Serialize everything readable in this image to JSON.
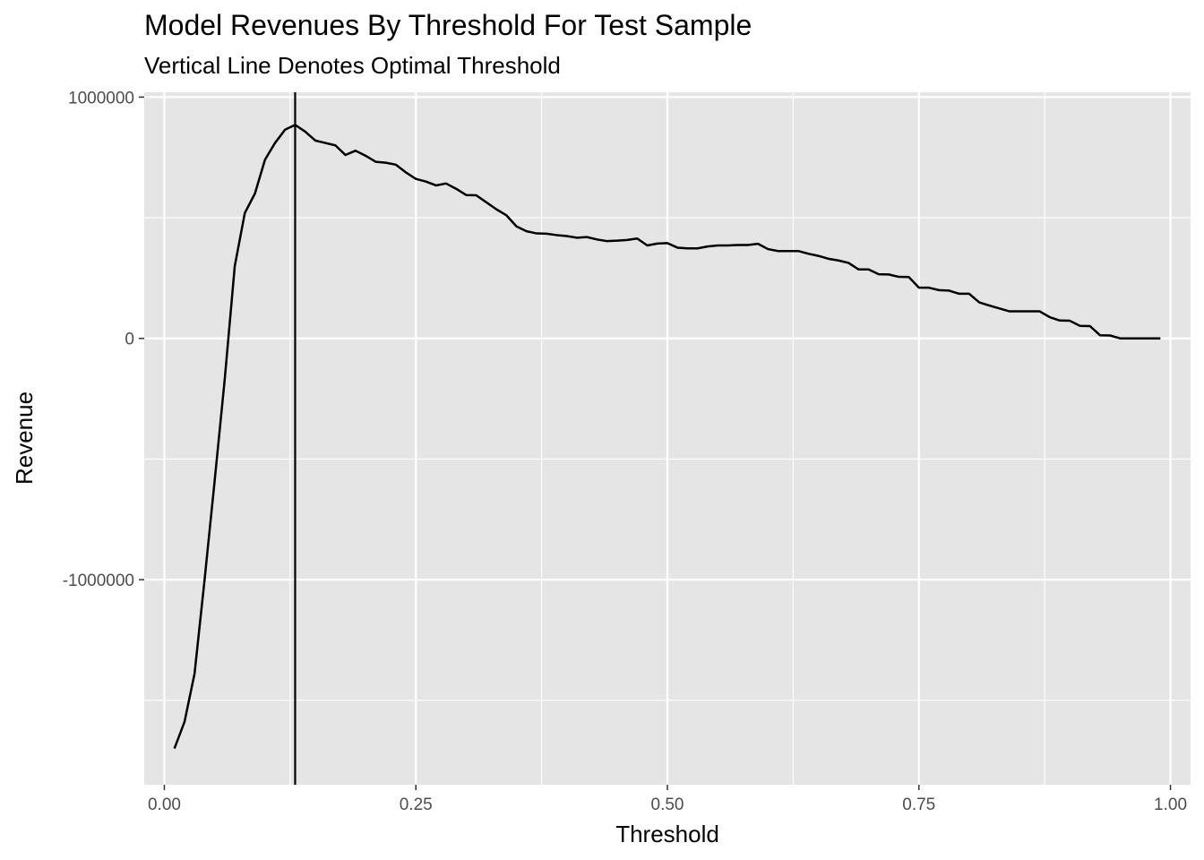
{
  "chart_data": {
    "type": "line",
    "title": "Model Revenues By Threshold For Test Sample",
    "subtitle": "Vertical Line Denotes Optimal Threshold",
    "xlabel": "Threshold",
    "ylabel": "Revenue",
    "xlim": [
      -0.02,
      1.02
    ],
    "ylim": [
      -1850000,
      1020000
    ],
    "x_ticks": [
      0.0,
      0.25,
      0.5,
      0.75,
      1.0
    ],
    "x_tick_labels": [
      "0.00",
      "0.25",
      "0.50",
      "0.75",
      "1.00"
    ],
    "y_ticks": [
      -1000000,
      0,
      1000000
    ],
    "y_tick_labels": [
      "-1000000",
      "0",
      "1000000"
    ],
    "grid": true,
    "panel_background": "#e5e5e5",
    "line_color": "#000000",
    "optimal_threshold": 0.13,
    "series": [
      {
        "x": [
          0.01,
          0.02,
          0.03,
          0.04,
          0.05,
          0.06,
          0.07,
          0.08,
          0.09,
          0.1,
          0.11,
          0.12,
          0.13,
          0.14,
          0.15,
          0.16,
          0.17,
          0.18,
          0.19,
          0.2,
          0.21,
          0.22,
          0.23,
          0.24,
          0.25,
          0.26,
          0.27,
          0.28,
          0.29,
          0.3,
          0.31,
          0.32,
          0.33,
          0.34,
          0.35,
          0.36,
          0.37,
          0.38,
          0.39,
          0.4,
          0.41,
          0.42,
          0.43,
          0.44,
          0.45,
          0.46,
          0.47,
          0.48,
          0.49,
          0.5,
          0.51,
          0.52,
          0.53,
          0.54,
          0.55,
          0.56,
          0.57,
          0.58,
          0.59,
          0.6,
          0.61,
          0.62,
          0.63,
          0.64,
          0.65,
          0.66,
          0.67,
          0.68,
          0.69,
          0.7,
          0.71,
          0.72,
          0.73,
          0.74,
          0.75,
          0.76,
          0.77,
          0.78,
          0.79,
          0.8,
          0.81,
          0.82,
          0.83,
          0.84,
          0.85,
          0.86,
          0.87,
          0.88,
          0.89,
          0.9,
          0.91,
          0.92,
          0.93,
          0.94,
          0.95,
          0.96,
          0.97,
          0.98,
          0.99
        ],
        "y": [
          -1700000,
          -1590000,
          -1390000,
          -1000000,
          -590000,
          -170000,
          300000,
          520000,
          600000,
          740000,
          810000,
          865000,
          885000,
          857000,
          820000,
          810000,
          800000,
          760000,
          778000,
          757000,
          732000,
          728000,
          720000,
          688000,
          661000,
          650000,
          634000,
          642000,
          620000,
          594000,
          593000,
          564000,
          535000,
          510000,
          464000,
          444000,
          435000,
          434000,
          428000,
          424000,
          417000,
          420000,
          410000,
          403000,
          405000,
          408000,
          414000,
          385000,
          393000,
          395000,
          376000,
          373000,
          373000,
          381000,
          385000,
          385000,
          387000,
          387000,
          392000,
          370000,
          362000,
          362000,
          362000,
          351000,
          342000,
          330000,
          323000,
          313000,
          286000,
          286000,
          266000,
          265000,
          255000,
          254000,
          210000,
          210000,
          200000,
          198000,
          185000,
          185000,
          149000,
          136000,
          124000,
          112000,
          112000,
          112000,
          112000,
          88000,
          74000,
          73000,
          52000,
          51000,
          13000,
          12000,
          0,
          0,
          0,
          0,
          0
        ]
      }
    ]
  }
}
